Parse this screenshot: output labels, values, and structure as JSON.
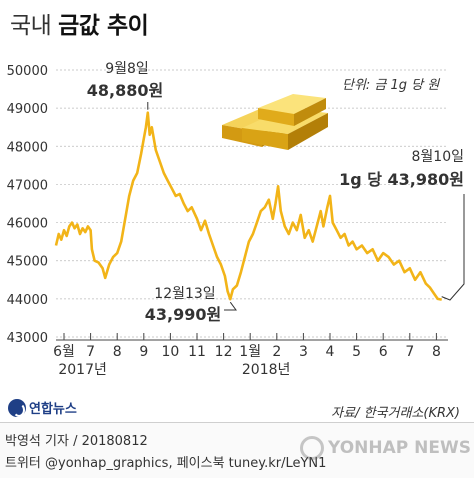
{
  "title_light": "국내",
  "title_bold": "금값 추이",
  "unit_label": "단위: 금 1g 당 원",
  "source": "자료/ 한국거래소(KRX)",
  "logo_text": "연합뉴스",
  "credit_line1": "박영석 기자 / 20180812",
  "credit_line2": "트위터 @yonhap_graphics, 페이스북 tuney.kr/LeYN1",
  "watermark_text": "YONHAP NEWS",
  "colors": {
    "line": "#f2b418",
    "grid": "#bbbbbb",
    "text": "#333333",
    "gold_bar": "#e8b21a",
    "logo_blue": "#1f3f86"
  },
  "icons": {
    "gold": "gold-bars-icon",
    "logo": "yonhap-logo-icon",
    "watermark": "yonhap-watermark-icon"
  },
  "chart_data": {
    "type": "line",
    "ylim": [
      43000,
      50000
    ],
    "y_ticks": [
      50000,
      49000,
      48000,
      47000,
      46000,
      45000,
      44000,
      43000
    ],
    "y_tick_labels": [
      "50000",
      "49000",
      "48000",
      "47000",
      "46000",
      "45000",
      "44000",
      "43000"
    ],
    "x_ticks": [
      {
        "label": "6월",
        "t": 0
      },
      {
        "label": "7",
        "t": 1
      },
      {
        "label": "8",
        "t": 2
      },
      {
        "label": "9",
        "t": 3
      },
      {
        "label": "10",
        "t": 4
      },
      {
        "label": "11",
        "t": 5
      },
      {
        "label": "12",
        "t": 6
      },
      {
        "label": "1월",
        "t": 7
      },
      {
        "label": "2",
        "t": 8
      },
      {
        "label": "3",
        "t": 9
      },
      {
        "label": "4",
        "t": 10
      },
      {
        "label": "5",
        "t": 11
      },
      {
        "label": "6",
        "t": 12
      },
      {
        "label": "7",
        "t": 13
      },
      {
        "label": "8",
        "t": 14
      }
    ],
    "year_labels": [
      {
        "label": "2017년",
        "t": 0.7
      },
      {
        "label": "2018년",
        "t": 7.6
      }
    ],
    "series": [
      {
        "points": [
          [
            -0.3,
            45400
          ],
          [
            -0.2,
            45700
          ],
          [
            -0.1,
            45550
          ],
          [
            0.0,
            45800
          ],
          [
            0.1,
            45650
          ],
          [
            0.2,
            45900
          ],
          [
            0.3,
            46000
          ],
          [
            0.4,
            45850
          ],
          [
            0.5,
            45950
          ],
          [
            0.6,
            45700
          ],
          [
            0.7,
            45850
          ],
          [
            0.8,
            45750
          ],
          [
            0.9,
            45900
          ],
          [
            1.0,
            45800
          ],
          [
            1.05,
            45300
          ],
          [
            1.15,
            45000
          ],
          [
            1.3,
            44950
          ],
          [
            1.45,
            44800
          ],
          [
            1.55,
            44550
          ],
          [
            1.7,
            44900
          ],
          [
            1.85,
            45100
          ],
          [
            2.0,
            45200
          ],
          [
            2.15,
            45500
          ],
          [
            2.3,
            46100
          ],
          [
            2.45,
            46700
          ],
          [
            2.6,
            47100
          ],
          [
            2.75,
            47300
          ],
          [
            2.9,
            47800
          ],
          [
            3.0,
            48200
          ],
          [
            3.08,
            48500
          ],
          [
            3.15,
            48880
          ],
          [
            3.22,
            48300
          ],
          [
            3.3,
            48500
          ],
          [
            3.45,
            47900
          ],
          [
            3.6,
            47600
          ],
          [
            3.75,
            47300
          ],
          [
            3.9,
            47100
          ],
          [
            4.05,
            46900
          ],
          [
            4.2,
            46700
          ],
          [
            4.35,
            46750
          ],
          [
            4.5,
            46500
          ],
          [
            4.65,
            46300
          ],
          [
            4.8,
            46400
          ],
          [
            5.0,
            46100
          ],
          [
            5.15,
            45800
          ],
          [
            5.3,
            46050
          ],
          [
            5.45,
            45700
          ],
          [
            5.6,
            45400
          ],
          [
            5.75,
            45100
          ],
          [
            5.9,
            44900
          ],
          [
            6.05,
            44600
          ],
          [
            6.15,
            44200
          ],
          [
            6.25,
            43990
          ],
          [
            6.35,
            44250
          ],
          [
            6.5,
            44350
          ],
          [
            6.65,
            44700
          ],
          [
            6.8,
            45100
          ],
          [
            6.95,
            45500
          ],
          [
            7.1,
            45700
          ],
          [
            7.25,
            46000
          ],
          [
            7.4,
            46300
          ],
          [
            7.55,
            46400
          ],
          [
            7.7,
            46600
          ],
          [
            7.85,
            46100
          ],
          [
            7.95,
            46500
          ],
          [
            8.05,
            46950
          ],
          [
            8.15,
            46300
          ],
          [
            8.3,
            45900
          ],
          [
            8.45,
            45700
          ],
          [
            8.6,
            46000
          ],
          [
            8.75,
            45800
          ],
          [
            8.9,
            46200
          ],
          [
            9.05,
            45600
          ],
          [
            9.2,
            45800
          ],
          [
            9.35,
            45500
          ],
          [
            9.5,
            45900
          ],
          [
            9.65,
            46300
          ],
          [
            9.75,
            45900
          ],
          [
            9.9,
            46400
          ],
          [
            10.0,
            46700
          ],
          [
            10.1,
            46000
          ],
          [
            10.25,
            45800
          ],
          [
            10.4,
            45600
          ],
          [
            10.55,
            45700
          ],
          [
            10.7,
            45400
          ],
          [
            10.85,
            45500
          ],
          [
            11.0,
            45300
          ],
          [
            11.2,
            45400
          ],
          [
            11.4,
            45200
          ],
          [
            11.6,
            45300
          ],
          [
            11.8,
            45000
          ],
          [
            12.0,
            45200
          ],
          [
            12.2,
            45100
          ],
          [
            12.4,
            44900
          ],
          [
            12.6,
            45000
          ],
          [
            12.8,
            44700
          ],
          [
            13.0,
            44800
          ],
          [
            13.2,
            44500
          ],
          [
            13.4,
            44700
          ],
          [
            13.6,
            44400
          ],
          [
            13.75,
            44300
          ],
          [
            13.9,
            44150
          ],
          [
            14.05,
            44000
          ],
          [
            14.2,
            43980
          ]
        ]
      }
    ],
    "annotations": [
      {
        "date": "9월8일",
        "value_text": "48,880원",
        "t": 3.15,
        "value": 48880
      },
      {
        "date": "12월13일",
        "value_text": "43,990원",
        "t": 6.25,
        "value": 43990
      },
      {
        "date": "8월10일",
        "value_text": "1g 당 43,980원",
        "t": 14.2,
        "value": 43980
      }
    ]
  }
}
